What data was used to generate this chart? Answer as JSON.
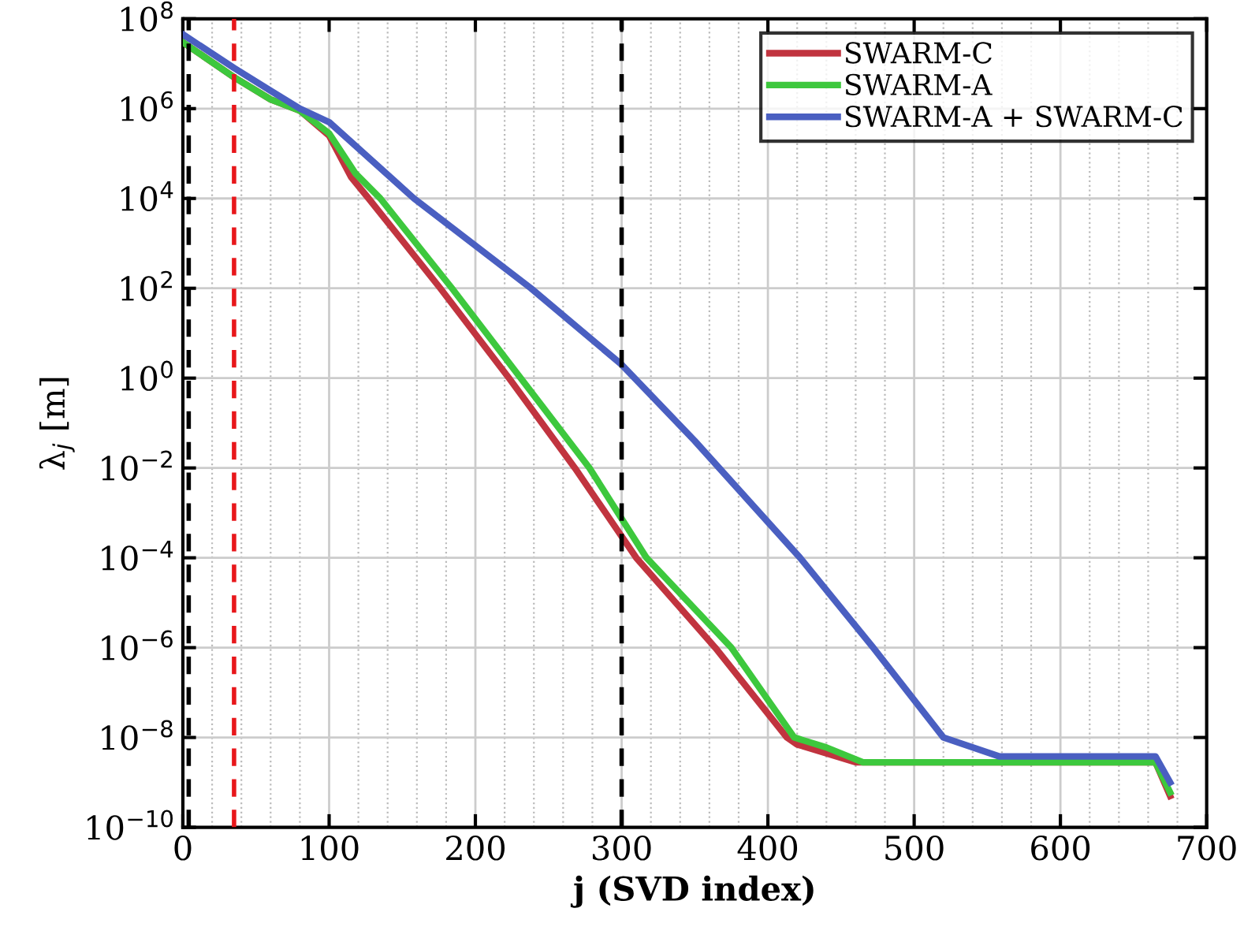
{
  "chart_data": {
    "type": "line",
    "xlabel": "j (SVD index)",
    "ylabel": "λ$_{j}$ [m]",
    "log": "y",
    "grid": true,
    "legend": "top right",
    "line_style": "solid",
    "xlim": [
      0,
      700
    ],
    "ylim": [
      1e-10,
      100000000.0
    ],
    "xticks": [
      0,
      {
        "value": 20,
        "label": null
      },
      {
        "value": 40,
        "label": null
      },
      {
        "value": 60,
        "label": null
      },
      {
        "value": 80,
        "label": null
      },
      100,
      {
        "value": 120,
        "label": null
      },
      {
        "value": 140,
        "label": null
      },
      {
        "value": 160,
        "label": null
      },
      {
        "value": 180,
        "label": null
      },
      200,
      {
        "value": 220,
        "label": null
      },
      {
        "value": 240,
        "label": null
      },
      {
        "value": 260,
        "label": null
      },
      {
        "value": 280,
        "label": null
      },
      300,
      {
        "value": 320,
        "label": null
      },
      {
        "value": 340,
        "label": null
      },
      {
        "value": 360,
        "label": null
      },
      {
        "value": 380,
        "label": null
      },
      400,
      {
        "value": 420,
        "label": null
      },
      {
        "value": 440,
        "label": null
      },
      {
        "value": 460,
        "label": null
      },
      {
        "value": 480,
        "label": null
      },
      500,
      {
        "value": 520,
        "label": null
      },
      {
        "value": 540,
        "label": null
      },
      {
        "value": 560,
        "label": null
      },
      {
        "value": 580,
        "label": null
      },
      600,
      {
        "value": 620,
        "label": null
      },
      {
        "value": 640,
        "label": null
      },
      {
        "value": 660,
        "label": null
      },
      {
        "value": 680,
        "label": null
      },
      700
    ],
    "yticks": [
      {
        "value": 1e-10,
        "label": "10$^{−10}$"
      },
      {
        "value": 1e-08,
        "label": "10$^{−8}$"
      },
      {
        "value": 1e-06,
        "label": "10$^{−6}$"
      },
      {
        "value": 0.0001,
        "label": "10$^{−4}$"
      },
      {
        "value": 0.01,
        "label": "10$^{−2}$"
      },
      {
        "value": 1,
        "label": "10$^{0}$"
      },
      {
        "value": 100,
        "label": "10$^{2}$"
      },
      {
        "value": 10000,
        "label": "10$^{4}$"
      },
      {
        "value": 1000000,
        "label": "10$^{6}$"
      },
      {
        "value": 100000000,
        "label": "10$^{8}$"
      }
    ],
    "ref_lines": [
      {
        "axis": "x",
        "value": 4,
        "color": "#000000",
        "line_style": "dashed"
      },
      {
        "axis": "x",
        "value": 35,
        "color": "#e8171b",
        "line_style": "dashed"
      },
      {
        "axis": "x",
        "value": 300,
        "color": "#000000",
        "line_style": "dashed"
      }
    ],
    "series": [
      {
        "name": "SWARM-C",
        "color": "#c1343f",
        "x": [
          0,
          35,
          60,
          80,
          100,
          115,
          127,
          176,
          223,
          268,
          310,
          364,
          413,
          420,
          460,
          665,
          675
        ],
        "values": [
          30000000.0,
          5000000.0,
          1600000.0,
          900000.0,
          250000.0,
          30000.0,
          10000.0,
          100,
          1,
          0.01,
          0.0001,
          1e-06,
          1e-08,
          7e-09,
          2.8e-09,
          2.8e-09,
          5e-10
        ]
      },
      {
        "name": "SWARM-A",
        "color": "#3dc83d",
        "x": [
          0,
          35,
          60,
          80,
          100,
          118,
          135,
          184,
          231,
          278,
          317,
          375,
          418,
          440,
          465,
          665,
          675
        ],
        "values": [
          30000000.0,
          5000000.0,
          1600000.0,
          900000.0,
          280000.0,
          36000.0,
          10000.0,
          100,
          1,
          0.01,
          0.0001,
          1e-06,
          1e-08,
          6e-09,
          2.8e-09,
          2.8e-09,
          6e-10
        ]
      },
      {
        "name": "SWARM-A + SWARM-C",
        "color": "#4a5fc1",
        "x": [
          0,
          35,
          60,
          80,
          100,
          158,
          238,
          300,
          350,
          422,
          472,
          520,
          558,
          665,
          675
        ],
        "values": [
          45000000.0,
          8000000.0,
          2500000.0,
          1000000.0,
          500000.0,
          10000.0,
          100,
          2,
          0.04,
          0.0001,
          1e-06,
          1e-08,
          3.8e-09,
          3.8e-09,
          1e-09
        ]
      }
    ]
  }
}
